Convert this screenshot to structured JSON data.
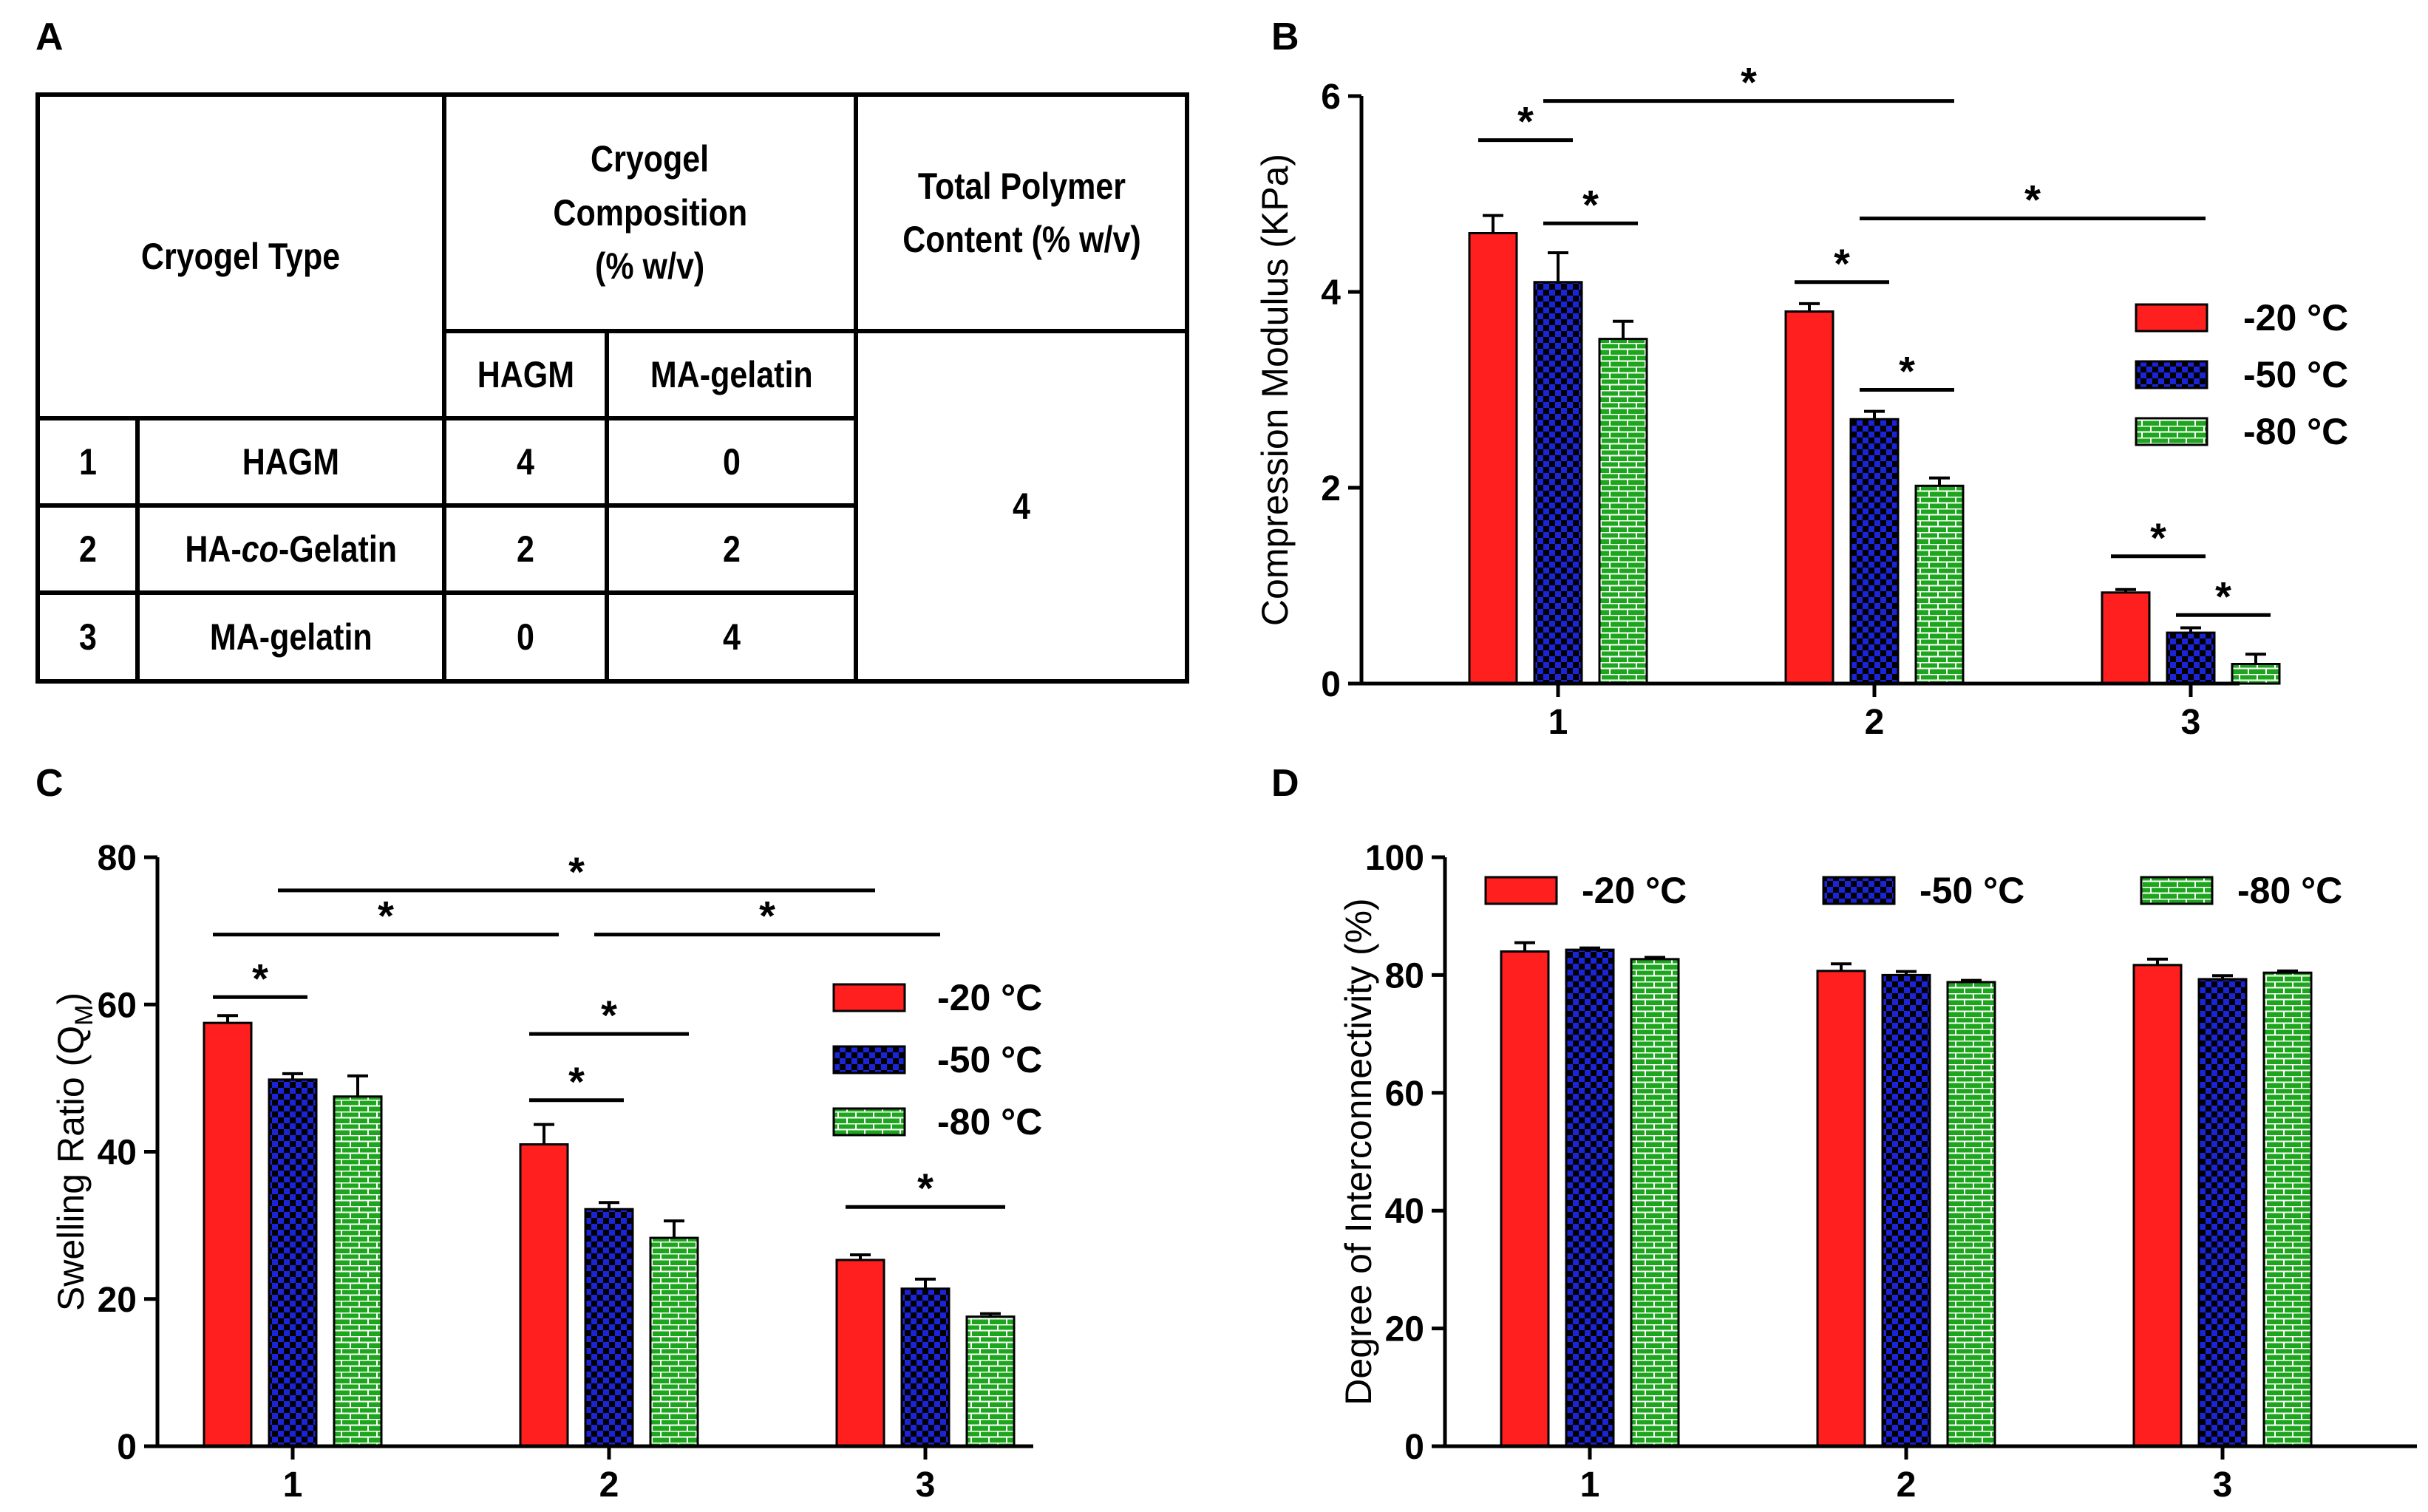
{
  "panels": {
    "A": "A",
    "B": "B",
    "C": "C",
    "D": "D"
  },
  "colors": {
    "red": "#ff1f1f",
    "blue": "#1b24d6",
    "green": "#1ea51e"
  },
  "table": {
    "header_type": "Cryogel Type",
    "header_comp_l1": "Cryogel",
    "header_comp_l2": "Composition",
    "header_comp_l3": "(% w/v)",
    "header_total_l1": "Total Polymer",
    "header_total_l2": "Content (% w/v)",
    "sub_hagm": "HAGM",
    "sub_magel": "MA-gelatin",
    "total_value": "4",
    "rows": [
      {
        "num": "1",
        "name_a": "HAGM",
        "name_b": "",
        "name_c": "",
        "hagm": "4",
        "magel": "0"
      },
      {
        "num": "2",
        "name_a": "HA-",
        "name_b": "co",
        "name_c": "-Gelatin",
        "hagm": "2",
        "magel": "2"
      },
      {
        "num": "3",
        "name_a": "MA-gelatin",
        "name_b": "",
        "name_c": "",
        "hagm": "0",
        "magel": "4"
      }
    ]
  },
  "chart_data": [
    {
      "panel": "B",
      "type": "bar",
      "ylabel": "Compression Modulus (KPa)",
      "ylim": [
        0,
        6
      ],
      "yticks": [
        0,
        2,
        4,
        6
      ],
      "categories": [
        "1",
        "2",
        "3"
      ],
      "series": [
        {
          "name": "-20 °C",
          "values": [
            4.6,
            3.8,
            0.93
          ],
          "errors": [
            0.18,
            0.08,
            0.03
          ]
        },
        {
          "name": "-50 °C",
          "values": [
            4.1,
            2.7,
            0.52
          ],
          "errors": [
            0.3,
            0.08,
            0.05
          ]
        },
        {
          "name": "-80 °C",
          "values": [
            3.52,
            2.02,
            0.2
          ],
          "errors": [
            0.18,
            0.08,
            0.1
          ]
        }
      ],
      "legend": "right",
      "significance": [
        {
          "label": "*",
          "from": [
            0,
            0
          ],
          "to": [
            0,
            1
          ],
          "y": 5.55
        },
        {
          "label": "*",
          "from": [
            0,
            1
          ],
          "to": [
            0,
            2
          ],
          "y": 4.7
        },
        {
          "label": "*",
          "from": [
            0,
            1
          ],
          "to": [
            1,
            2
          ],
          "y": 5.95
        },
        {
          "label": "*",
          "from": [
            1,
            0
          ],
          "to": [
            1,
            1
          ],
          "y": 4.1
        },
        {
          "label": "*",
          "from": [
            1,
            1
          ],
          "to": [
            1,
            2
          ],
          "y": 3.0
        },
        {
          "label": "*",
          "from": [
            1,
            1
          ],
          "to": [
            2,
            1
          ],
          "y": 4.75
        },
        {
          "label": "*",
          "from": [
            2,
            0
          ],
          "to": [
            2,
            1
          ],
          "y": 1.3
        },
        {
          "label": "*",
          "from": [
            2,
            1
          ],
          "to": [
            2,
            2
          ],
          "y": 0.7
        }
      ]
    },
    {
      "panel": "C",
      "type": "bar",
      "ylabel": "Swelling Ratio (Q",
      "ylabel_sub": "M",
      "ylabel_end": ")",
      "ylim": [
        0,
        80
      ],
      "yticks": [
        0,
        20,
        40,
        60,
        80
      ],
      "categories": [
        "1",
        "2",
        "3"
      ],
      "series": [
        {
          "name": "-20 °C",
          "values": [
            57.5,
            41.0,
            25.3
          ],
          "errors": [
            1.0,
            2.7,
            0.7
          ]
        },
        {
          "name": "-50 °C",
          "values": [
            49.8,
            32.2,
            21.4
          ],
          "errors": [
            0.8,
            0.9,
            1.3
          ]
        },
        {
          "name": "-80 °C",
          "values": [
            47.5,
            28.3,
            17.6
          ],
          "errors": [
            2.8,
            2.3,
            0.4
          ]
        }
      ],
      "legend": "right",
      "significance": [
        {
          "label": "*",
          "from": [
            0,
            0
          ],
          "to": [
            0,
            1
          ],
          "y": 61.0
        },
        {
          "label": "*",
          "from": [
            0,
            0
          ],
          "to": [
            1,
            0
          ],
          "y": 69.5
        },
        {
          "label": "*",
          "from": [
            0,
            1
          ],
          "to": [
            2,
            0
          ],
          "y": 75.5
        },
        {
          "label": "*",
          "from": [
            1,
            0
          ],
          "to": [
            1,
            1
          ],
          "y": 47.0
        },
        {
          "label": "*",
          "from": [
            1,
            0
          ],
          "to": [
            1,
            2
          ],
          "y": 56.0
        },
        {
          "label": "*",
          "from": [
            1,
            1
          ],
          "to": [
            2,
            1
          ],
          "y": 69.5
        },
        {
          "label": "*",
          "from": [
            2,
            0
          ],
          "to": [
            2,
            2
          ],
          "y": 32.5
        }
      ]
    },
    {
      "panel": "D",
      "type": "bar",
      "ylabel": "Degree of Interconnectivity (%)",
      "ylim": [
        0,
        100
      ],
      "yticks": [
        0,
        20,
        40,
        60,
        80,
        100
      ],
      "categories": [
        "1",
        "2",
        "3"
      ],
      "series": [
        {
          "name": "-20 °C",
          "values": [
            84.0,
            80.7,
            81.7
          ],
          "errors": [
            1.5,
            1.2,
            1.0
          ]
        },
        {
          "name": "-50 °C",
          "values": [
            84.3,
            80.0,
            79.3
          ],
          "errors": [
            0.3,
            0.6,
            0.6
          ]
        },
        {
          "name": "-80 °C",
          "values": [
            82.7,
            78.8,
            80.4
          ],
          "errors": [
            0.3,
            0.3,
            0.3
          ]
        }
      ],
      "legend": "top",
      "significance": []
    }
  ]
}
